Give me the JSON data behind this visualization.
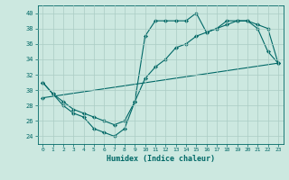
{
  "title": "",
  "xlabel": "Humidex (Indice chaleur)",
  "xlim": [
    -0.5,
    23.5
  ],
  "ylim": [
    23,
    41
  ],
  "yticks": [
    24,
    26,
    28,
    30,
    32,
    34,
    36,
    38,
    40
  ],
  "xticks": [
    0,
    1,
    2,
    3,
    4,
    5,
    6,
    7,
    8,
    9,
    10,
    11,
    12,
    13,
    14,
    15,
    16,
    17,
    18,
    19,
    20,
    21,
    22,
    23
  ],
  "bg_color": "#cce8e0",
  "grid_color": "#aaccc4",
  "line_color": "#006866",
  "line1_x": [
    0,
    1,
    2,
    3,
    4,
    5,
    6,
    7,
    8,
    9,
    10,
    11,
    12,
    13,
    14,
    15,
    16,
    17,
    18,
    19,
    20,
    21,
    22,
    23
  ],
  "line1_y": [
    31,
    29.5,
    28,
    27,
    26.5,
    25,
    24.5,
    24,
    25,
    28.5,
    37,
    39,
    39,
    39,
    39,
    40,
    37.5,
    38,
    39,
    39,
    39,
    38,
    35,
    33.5
  ],
  "line2_x": [
    0,
    1,
    2,
    3,
    4,
    5,
    6,
    7,
    8,
    9,
    10,
    11,
    12,
    13,
    14,
    15,
    16,
    17,
    18,
    19,
    20,
    21,
    22,
    23
  ],
  "line2_y": [
    31,
    29.5,
    28.5,
    27.5,
    27,
    26.5,
    26,
    25.5,
    26,
    28.5,
    31.5,
    33,
    34,
    35.5,
    36,
    37,
    37.5,
    38,
    38.5,
    39,
    39,
    38.5,
    38,
    33.5
  ],
  "line3_x": [
    0,
    23
  ],
  "line3_y": [
    29,
    33.5
  ]
}
